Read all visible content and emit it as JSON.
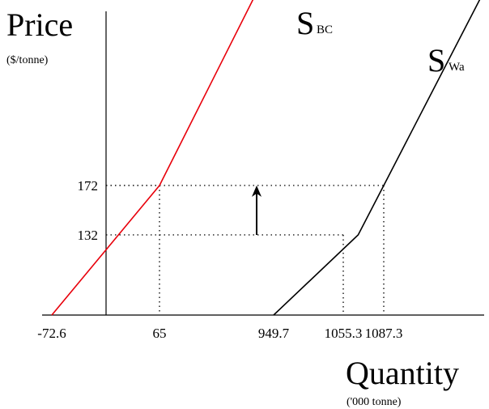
{
  "chart_data": {
    "type": "line",
    "title": "",
    "ylabel": "Price",
    "ylabel_unit": "($/tonne)",
    "xlabel": "Quantity",
    "xlabel_unit": "('000 tonne)",
    "x_ticks": [
      {
        "value": -72.6,
        "label": "-72.6"
      },
      {
        "value": 65,
        "label": "65"
      },
      {
        "value": 949.7,
        "label": "949.7"
      },
      {
        "value": 1055.3,
        "label": "1055.3"
      },
      {
        "value": 1087.3,
        "label": "1087.3"
      }
    ],
    "y_ticks": [
      {
        "value": 132,
        "label": "132"
      },
      {
        "value": 172,
        "label": "172"
      }
    ],
    "series": [
      {
        "name": "SBC",
        "label_main": "S",
        "label_sub": "BC",
        "color": "#e8000b",
        "points": [
          {
            "x": -72.6,
            "y": 0
          },
          {
            "x": 65,
            "y": 172
          },
          {
            "x": 250,
            "y": 405
          }
        ]
      },
      {
        "name": "SWa",
        "label_main": "S",
        "label_sub": "Wa",
        "color": "#000000",
        "points": [
          {
            "x": 949.7,
            "y": 0
          },
          {
            "x": 1055.3,
            "y": 132
          },
          {
            "x": 1087.3,
            "y": 172
          },
          {
            "x": 1285,
            "y": 420
          }
        ]
      }
    ],
    "guides": [
      {
        "x": 65,
        "y": 172
      },
      {
        "x": 1087.3,
        "y": 172
      },
      {
        "x": 1055.3,
        "y": 132
      }
    ],
    "annotation": {
      "type": "arrow",
      "x": 870,
      "from_y": 132,
      "to_y": 172
    }
  }
}
